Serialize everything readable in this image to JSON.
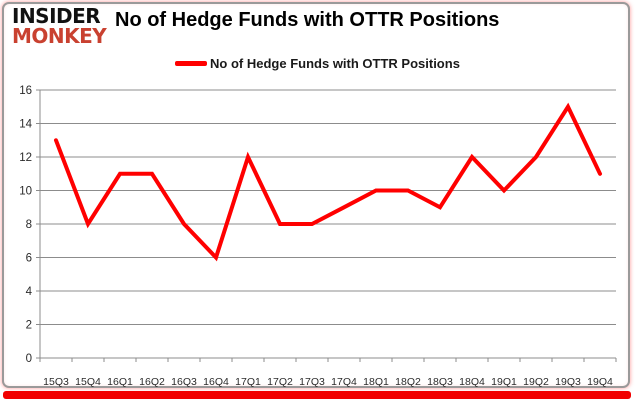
{
  "logo": {
    "line1": "INSIDER",
    "line2": "MONKEY"
  },
  "header": {
    "title": "No of Hedge Funds with OTTR Positions"
  },
  "legend": {
    "label": "No of Hedge Funds with OTTR Positions"
  },
  "chart_data": {
    "type": "line",
    "title": "No of Hedge Funds with OTTR Positions",
    "categories": [
      "15Q3",
      "15Q4",
      "16Q1",
      "16Q2",
      "16Q3",
      "16Q4",
      "17Q1",
      "17Q2",
      "17Q3",
      "17Q4",
      "18Q1",
      "18Q2",
      "18Q3",
      "18Q4",
      "19Q1",
      "19Q2",
      "19Q3",
      "19Q4"
    ],
    "series": [
      {
        "name": "No of Hedge Funds with OTTR Positions",
        "color": "#ff0000",
        "values": [
          13,
          8,
          11,
          11,
          8,
          6,
          12,
          8,
          8,
          9,
          10,
          10,
          9,
          12,
          10,
          12,
          15,
          11
        ]
      }
    ],
    "xlabel": "",
    "ylabel": "",
    "ylim": [
      0,
      16
    ],
    "ytick_step": 2,
    "grid": true,
    "legend_position": "top"
  },
  "colors": {
    "line": "#ff0000",
    "accent_bar": "#f10000",
    "gridline": "#8c8c8c",
    "axis_text": "#2b2b2b",
    "frame_border": "#9a9a9a"
  }
}
